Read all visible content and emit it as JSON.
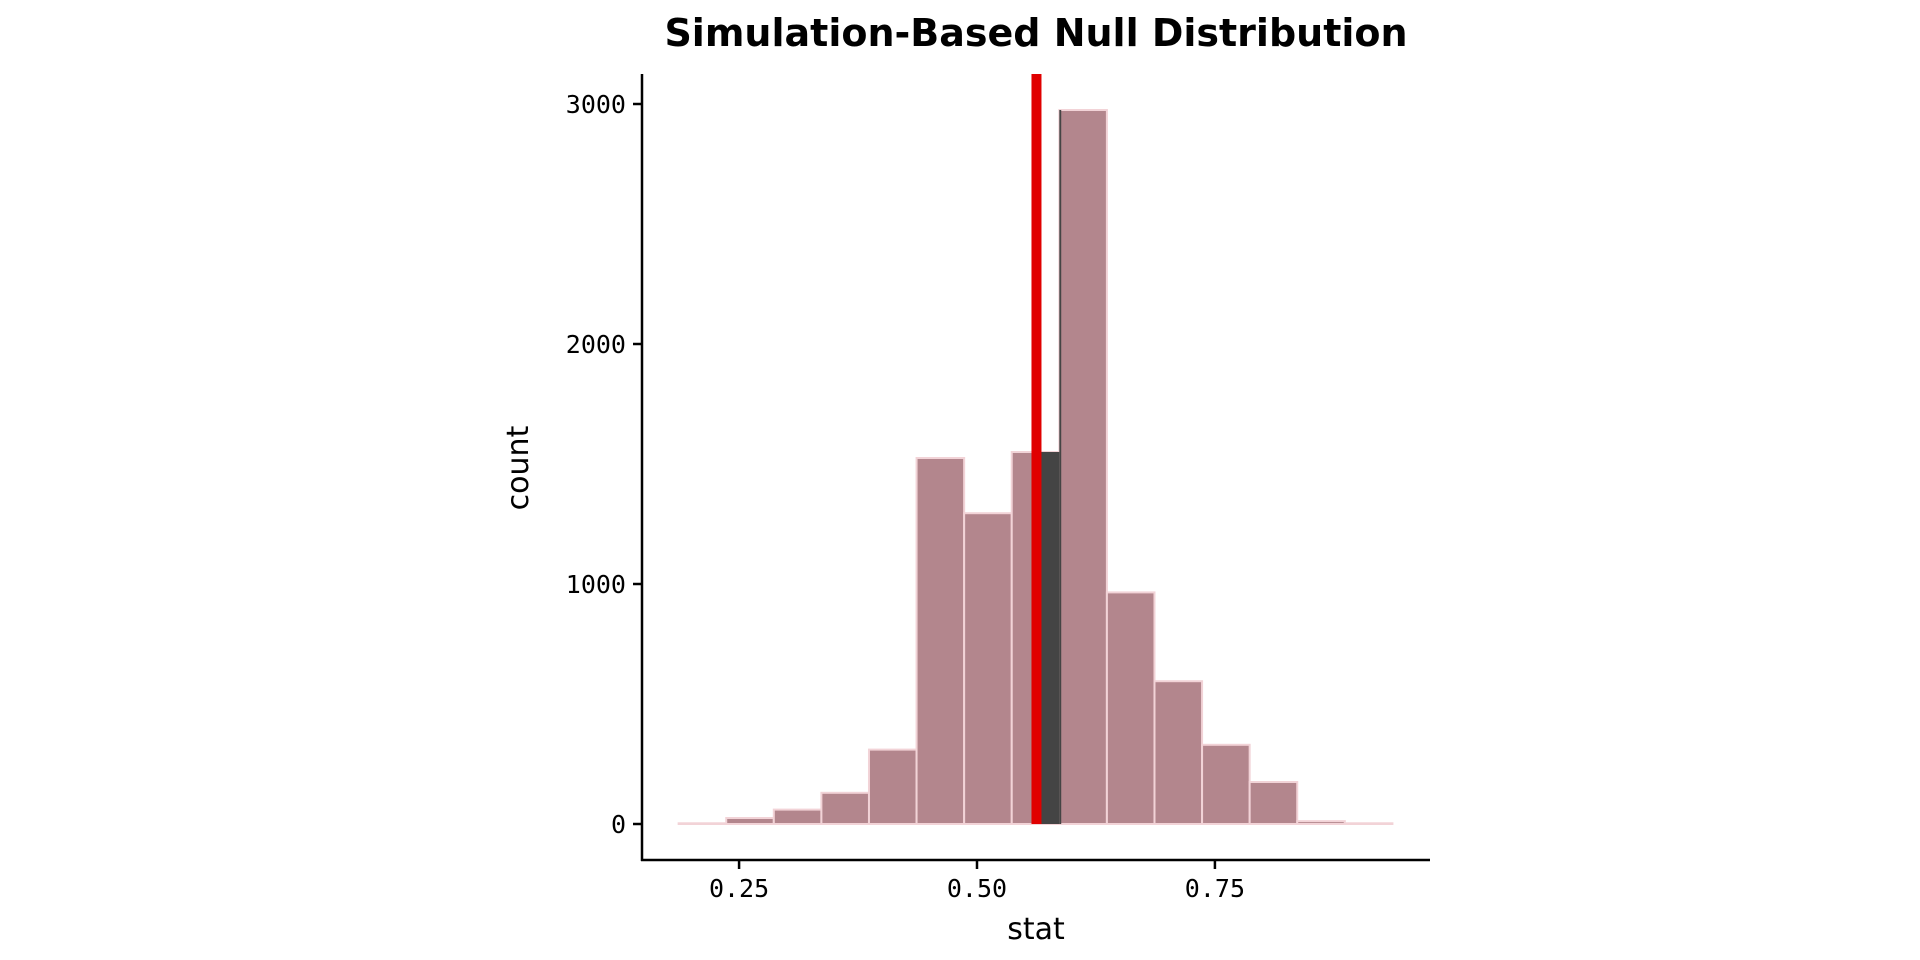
{
  "chart_data": {
    "type": "bar",
    "title": "Simulation-Based Null Distribution",
    "xlabel": "stat",
    "ylabel": "count",
    "xlim": [
      0.148,
      0.976
    ],
    "ylim": [
      -150,
      3125
    ],
    "xticks": [
      0.25,
      0.5,
      0.75
    ],
    "xtick_labels": [
      "0.25",
      "0.50",
      "0.75"
    ],
    "yticks": [
      0,
      1000,
      2000,
      3000
    ],
    "ytick_labels": [
      "0",
      "1000",
      "2000",
      "3000"
    ],
    "grid": false,
    "bin_width": 0.05,
    "bins": [
      {
        "center": 0.2115,
        "count": 3
      },
      {
        "center": 0.2615,
        "count": 25
      },
      {
        "center": 0.3115,
        "count": 60
      },
      {
        "center": 0.3615,
        "count": 130
      },
      {
        "center": 0.4115,
        "count": 310
      },
      {
        "center": 0.4615,
        "count": 1525
      },
      {
        "center": 0.5115,
        "count": 1295
      },
      {
        "center": 0.5615,
        "count": 1550
      },
      {
        "center": 0.6115,
        "count": 2975
      },
      {
        "center": 0.6615,
        "count": 965
      },
      {
        "center": 0.7115,
        "count": 595
      },
      {
        "center": 0.7615,
        "count": 330
      },
      {
        "center": 0.8115,
        "count": 175
      },
      {
        "center": 0.8615,
        "count": 12
      },
      {
        "center": 0.9115,
        "count": 3
      }
    ],
    "shaded_region": {
      "from": 0.5625,
      "to": 0.5885,
      "fill": "#444444"
    },
    "observed_stat": 0.5625,
    "colors": {
      "bar_fill": "#b3868d",
      "bar_stroke": "#f2d3d7",
      "observed_line": "#e00000",
      "axis": "#000000"
    }
  }
}
